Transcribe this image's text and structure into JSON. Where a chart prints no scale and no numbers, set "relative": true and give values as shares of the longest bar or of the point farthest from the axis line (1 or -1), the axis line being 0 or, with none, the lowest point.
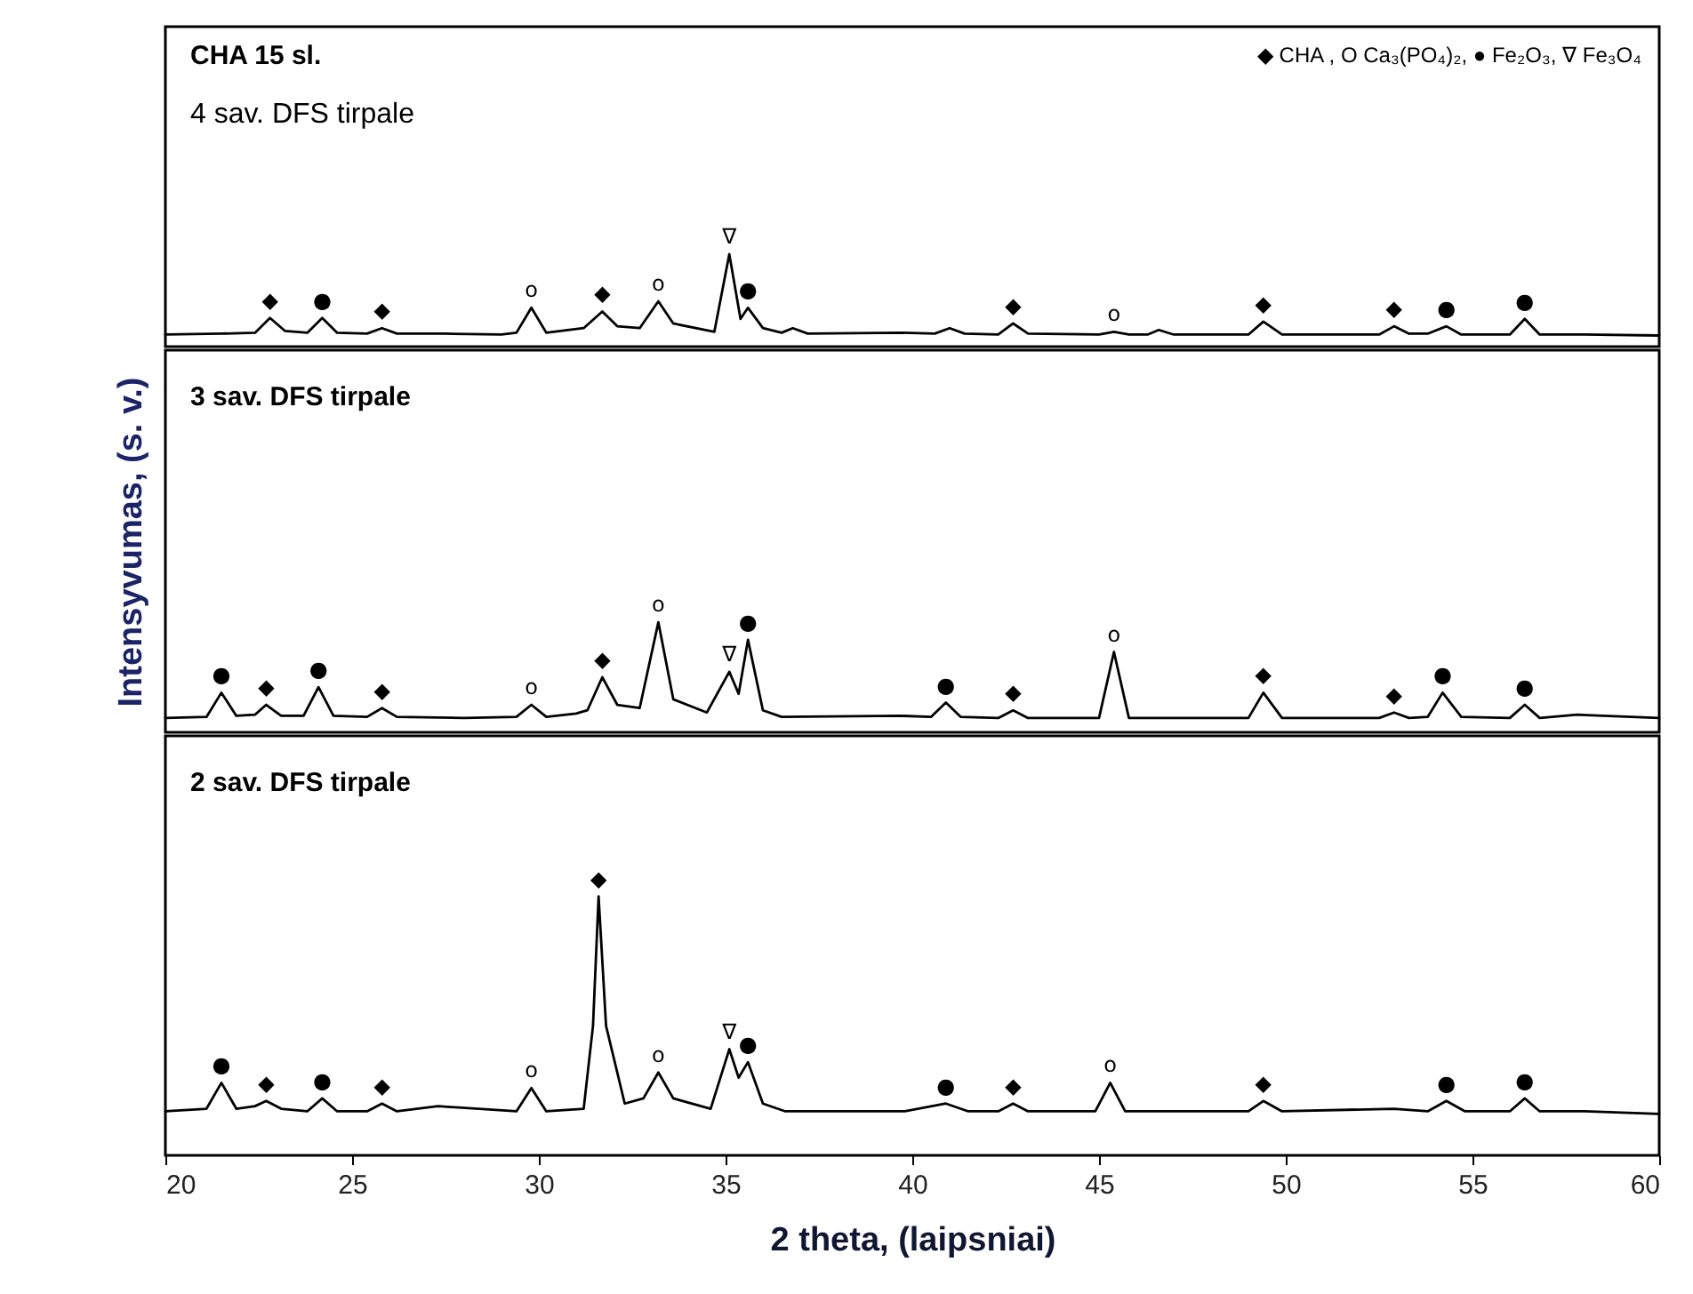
{
  "chart_data": [
    {
      "type": "line",
      "relative": true,
      "title": "CHA 15 sl.",
      "subtitle": "4 sav. DFS tirpale",
      "xlim": [
        20,
        60
      ],
      "tick_labels": false,
      "grid": false,
      "marker": "none",
      "line_style": "solid",
      "x": [
        20,
        21.5,
        22.4,
        22.8,
        23.2,
        23.8,
        24.2,
        24.6,
        25.4,
        25.8,
        26.2,
        27.5,
        29.0,
        29.4,
        29.8,
        30.2,
        31.2,
        31.7,
        32.1,
        32.7,
        33.2,
        33.6,
        34.7,
        35.1,
        35.4,
        35.6,
        36.0,
        36.5,
        36.8,
        37.2,
        39.7,
        40.6,
        41.0,
        41.4,
        42.3,
        42.7,
        43.1,
        45.0,
        45.4,
        45.8,
        46.3,
        46.6,
        47.0,
        49.0,
        49.4,
        49.9,
        52.5,
        52.9,
        53.3,
        53.8,
        54.3,
        54.7,
        56.0,
        56.4,
        56.8,
        58.0,
        60
      ],
      "series": [
        {
          "color": "#000000",
          "values": [
            0.13,
            0.14,
            0.15,
            0.31,
            0.17,
            0.15,
            0.31,
            0.15,
            0.14,
            0.2,
            0.14,
            0.14,
            0.13,
            0.15,
            0.42,
            0.15,
            0.2,
            0.38,
            0.22,
            0.2,
            0.49,
            0.25,
            0.16,
            1.0,
            0.3,
            0.42,
            0.2,
            0.15,
            0.2,
            0.14,
            0.15,
            0.14,
            0.2,
            0.14,
            0.13,
            0.25,
            0.14,
            0.13,
            0.16,
            0.13,
            0.13,
            0.18,
            0.13,
            0.13,
            0.27,
            0.13,
            0.13,
            0.22,
            0.14,
            0.14,
            0.22,
            0.13,
            0.13,
            0.3,
            0.13,
            0.13,
            0.12
          ]
        }
      ],
      "annotations": [
        "◆ CHA , O Ca₃(PO₄)₂, ● Fe₂O₃, ∇ Fe₃O₄",
        {
          "text": "◆",
          "x": 22.8,
          "y": 0.31
        },
        {
          "text": "●",
          "x": 24.2,
          "y": 0.31
        },
        {
          "text": "◆",
          "x": 25.8,
          "y": 0.2
        },
        {
          "text": "o",
          "x": 29.8,
          "y": 0.42
        },
        {
          "text": "◆",
          "x": 31.7,
          "y": 0.38
        },
        {
          "text": "o",
          "x": 33.2,
          "y": 0.49
        },
        {
          "text": "∇",
          "x": 35.1,
          "y": 1.0
        },
        {
          "text": "●",
          "x": 35.6,
          "y": 0.42
        },
        {
          "text": "◆",
          "x": 42.7,
          "y": 0.25
        },
        {
          "text": "o",
          "x": 45.4,
          "y": 0.16
        },
        {
          "text": "◆",
          "x": 49.4,
          "y": 0.27
        },
        {
          "text": "◆",
          "x": 52.9,
          "y": 0.22
        },
        {
          "text": "●",
          "x": 54.3,
          "y": 0.22
        },
        {
          "text": "●",
          "x": 56.4,
          "y": 0.3
        }
      ]
    },
    {
      "type": "line",
      "relative": true,
      "title": "3 sav. DFS tirpale",
      "ylabel": "Intensyvumas, (s. v.)",
      "xlim": [
        20,
        60
      ],
      "tick_labels": false,
      "grid": false,
      "marker": "none",
      "line_style": "solid",
      "x": [
        20,
        21.1,
        21.5,
        21.9,
        22.4,
        22.7,
        23.1,
        23.7,
        24.1,
        24.5,
        25.4,
        25.8,
        26.2,
        28.0,
        29.4,
        29.8,
        30.2,
        31.0,
        31.3,
        31.7,
        32.1,
        32.7,
        33.2,
        33.6,
        34.5,
        35.1,
        35.35,
        35.6,
        36.0,
        36.5,
        39.7,
        40.5,
        40.9,
        41.3,
        42.3,
        42.7,
        43.1,
        45.0,
        45.4,
        45.8,
        47.0,
        49.0,
        49.4,
        49.9,
        52.5,
        52.9,
        53.3,
        53.8,
        54.2,
        54.7,
        56.0,
        56.4,
        56.8,
        57.8,
        60
      ],
      "series": [
        {
          "color": "#000000",
          "values": [
            0.13,
            0.14,
            0.36,
            0.15,
            0.16,
            0.25,
            0.15,
            0.15,
            0.41,
            0.15,
            0.14,
            0.22,
            0.14,
            0.13,
            0.14,
            0.25,
            0.14,
            0.17,
            0.2,
            0.5,
            0.25,
            0.22,
            1.0,
            0.3,
            0.18,
            0.55,
            0.35,
            0.84,
            0.2,
            0.14,
            0.15,
            0.14,
            0.27,
            0.14,
            0.13,
            0.2,
            0.13,
            0.13,
            0.73,
            0.13,
            0.13,
            0.13,
            0.36,
            0.13,
            0.13,
            0.18,
            0.13,
            0.14,
            0.36,
            0.14,
            0.13,
            0.25,
            0.13,
            0.16,
            0.13
          ]
        }
      ],
      "annotations": [
        {
          "text": "●",
          "x": 21.5,
          "y": 0.36
        },
        {
          "text": "◆",
          "x": 22.7,
          "y": 0.25
        },
        {
          "text": "●",
          "x": 24.1,
          "y": 0.41
        },
        {
          "text": "◆",
          "x": 25.8,
          "y": 0.22
        },
        {
          "text": "o",
          "x": 29.8,
          "y": 0.25
        },
        {
          "text": "◆",
          "x": 31.7,
          "y": 0.5
        },
        {
          "text": "o",
          "x": 33.2,
          "y": 1.0
        },
        {
          "text": "∇",
          "x": 35.1,
          "y": 0.55
        },
        {
          "text": "●",
          "x": 35.6,
          "y": 0.84
        },
        {
          "text": "●",
          "x": 40.9,
          "y": 0.27
        },
        {
          "text": "◆",
          "x": 42.7,
          "y": 0.2
        },
        {
          "text": "o",
          "x": 45.4,
          "y": 0.73
        },
        {
          "text": "◆",
          "x": 49.4,
          "y": 0.36
        },
        {
          "text": "◆",
          "x": 52.9,
          "y": 0.18
        },
        {
          "text": "●",
          "x": 54.2,
          "y": 0.36
        },
        {
          "text": "●",
          "x": 56.4,
          "y": 0.25
        }
      ]
    },
    {
      "type": "line",
      "relative": true,
      "title": "2 sav. DFS tirpale",
      "xlabel": "2 theta, (laipsniai)",
      "xlim": [
        20,
        60
      ],
      "xticks": [
        20,
        25,
        30,
        35,
        40,
        45,
        50,
        55,
        60
      ],
      "tick_labels": "x",
      "grid": false,
      "marker": "none",
      "line_style": "solid",
      "x": [
        20,
        21.1,
        21.5,
        21.9,
        22.4,
        22.7,
        23.1,
        23.8,
        24.2,
        24.6,
        25.4,
        25.8,
        26.2,
        27.3,
        29.4,
        29.8,
        30.2,
        31.2,
        31.45,
        31.6,
        31.8,
        32.3,
        32.8,
        33.2,
        33.6,
        34.6,
        35.1,
        35.35,
        35.6,
        36.0,
        36.6,
        39.8,
        40.9,
        41.5,
        42.3,
        42.7,
        43.1,
        44.9,
        45.3,
        45.7,
        47.0,
        49.0,
        49.4,
        49.9,
        52.9,
        53.8,
        54.3,
        54.8,
        56.0,
        56.4,
        56.8,
        58.0,
        60
      ],
      "series": [
        {
          "color": "#000000",
          "values": [
            0.17,
            0.18,
            0.28,
            0.18,
            0.19,
            0.21,
            0.18,
            0.17,
            0.22,
            0.17,
            0.17,
            0.2,
            0.17,
            0.19,
            0.17,
            0.26,
            0.17,
            0.18,
            0.5,
            1.0,
            0.5,
            0.2,
            0.22,
            0.32,
            0.22,
            0.18,
            0.41,
            0.3,
            0.36,
            0.2,
            0.17,
            0.17,
            0.2,
            0.17,
            0.17,
            0.2,
            0.17,
            0.17,
            0.28,
            0.17,
            0.17,
            0.17,
            0.21,
            0.17,
            0.18,
            0.17,
            0.21,
            0.17,
            0.17,
            0.22,
            0.17,
            0.17,
            0.16
          ]
        }
      ],
      "annotations": [
        {
          "text": "●",
          "x": 21.5,
          "y": 0.28
        },
        {
          "text": "◆",
          "x": 22.7,
          "y": 0.21
        },
        {
          "text": "●",
          "x": 24.2,
          "y": 0.22
        },
        {
          "text": "◆",
          "x": 25.8,
          "y": 0.2
        },
        {
          "text": "o",
          "x": 29.8,
          "y": 0.26
        },
        {
          "text": "◆",
          "x": 31.6,
          "y": 1.0
        },
        {
          "text": "o",
          "x": 33.2,
          "y": 0.32
        },
        {
          "text": "∇",
          "x": 35.1,
          "y": 0.41
        },
        {
          "text": "●",
          "x": 35.6,
          "y": 0.36
        },
        {
          "text": "●",
          "x": 40.9,
          "y": 0.2
        },
        {
          "text": "◆",
          "x": 42.7,
          "y": 0.2
        },
        {
          "text": "o",
          "x": 45.3,
          "y": 0.28
        },
        {
          "text": "◆",
          "x": 49.4,
          "y": 0.21
        },
        {
          "text": "●",
          "x": 54.3,
          "y": 0.21
        },
        {
          "text": "●",
          "x": 56.4,
          "y": 0.22
        }
      ]
    }
  ]
}
